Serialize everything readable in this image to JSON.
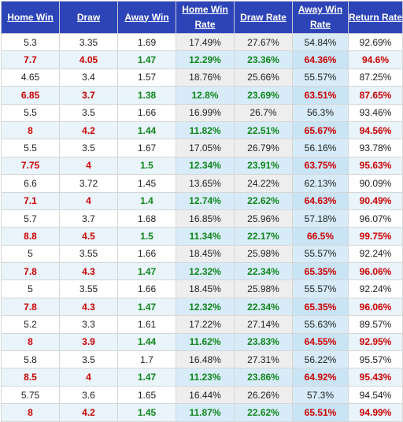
{
  "headers": {
    "home_win": "Home Win",
    "draw": "Draw",
    "away_win": "Away Win",
    "home_win_rate": [
      "Home Win",
      "Rate"
    ],
    "draw_rate": "Draw Rate",
    "away_win_rate": [
      "Away Win",
      "Rate"
    ],
    "return_rate": "Return Rate"
  },
  "rows": [
    [
      "5.3",
      "3.35",
      "1.69",
      "17.49%",
      "27.67%",
      "54.84%",
      "92.69%"
    ],
    [
      "7.7",
      "4.05",
      "1.47",
      "12.29%",
      "23.36%",
      "64.36%",
      "94.6%"
    ],
    [
      "4.65",
      "3.4",
      "1.57",
      "18.76%",
      "25.66%",
      "55.57%",
      "87.25%"
    ],
    [
      "6.85",
      "3.7",
      "1.38",
      "12.8%",
      "23.69%",
      "63.51%",
      "87.65%"
    ],
    [
      "5.5",
      "3.5",
      "1.66",
      "16.99%",
      "26.7%",
      "56.3%",
      "93.46%"
    ],
    [
      "8",
      "4.2",
      "1.44",
      "11.82%",
      "22.51%",
      "65.67%",
      "94.56%"
    ],
    [
      "5.5",
      "3.5",
      "1.67",
      "17.05%",
      "26.79%",
      "56.16%",
      "93.78%"
    ],
    [
      "7.75",
      "4",
      "1.5",
      "12.34%",
      "23.91%",
      "63.75%",
      "95.63%"
    ],
    [
      "6.6",
      "3.72",
      "1.45",
      "13.65%",
      "24.22%",
      "62.13%",
      "90.09%"
    ],
    [
      "7.1",
      "4",
      "1.4",
      "12.74%",
      "22.62%",
      "64.63%",
      "90.49%"
    ],
    [
      "5.7",
      "3.7",
      "1.68",
      "16.85%",
      "25.96%",
      "57.18%",
      "96.07%"
    ],
    [
      "8.8",
      "4.5",
      "1.5",
      "11.34%",
      "22.17%",
      "66.5%",
      "99.75%"
    ],
    [
      "5",
      "3.55",
      "1.66",
      "18.45%",
      "25.98%",
      "55.57%",
      "92.24%"
    ],
    [
      "7.8",
      "4.3",
      "1.47",
      "12.32%",
      "22.34%",
      "65.35%",
      "96.06%"
    ],
    [
      "5",
      "3.55",
      "1.66",
      "18.45%",
      "25.98%",
      "55.57%",
      "92.24%"
    ],
    [
      "7.8",
      "4.3",
      "1.47",
      "12.32%",
      "22.34%",
      "65.35%",
      "96.06%"
    ],
    [
      "5.2",
      "3.3",
      "1.61",
      "17.22%",
      "27.14%",
      "55.63%",
      "89.57%"
    ],
    [
      "8",
      "3.9",
      "1.44",
      "11.62%",
      "23.83%",
      "64.55%",
      "92.95%"
    ],
    [
      "5.8",
      "3.5",
      "1.7",
      "16.48%",
      "27.31%",
      "56.22%",
      "95.57%"
    ],
    [
      "8.5",
      "4",
      "1.47",
      "11.23%",
      "23.86%",
      "64.92%",
      "95.43%"
    ],
    [
      "5.75",
      "3.6",
      "1.65",
      "16.44%",
      "26.26%",
      "57.3%",
      "94.54%"
    ],
    [
      "8",
      "4.2",
      "1.45",
      "11.87%",
      "22.62%",
      "65.51%",
      "94.99%"
    ]
  ],
  "colors": {
    "header_bg": "#2d44b8",
    "highlight_red": "#cc0000",
    "highlight_green": "#11861b",
    "alt_row_bg": "#e9f4fb"
  }
}
